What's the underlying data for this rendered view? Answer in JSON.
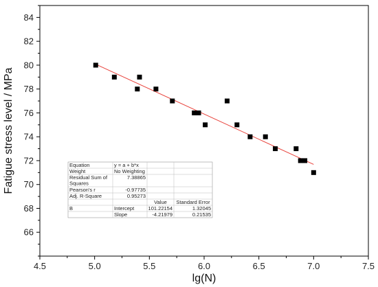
{
  "chart_data": {
    "type": "scatter",
    "xlabel": "lg(N)",
    "ylabel": "Fatigue stress level / MPa",
    "xlim": [
      4.5,
      7.5
    ],
    "ylim": [
      64,
      85
    ],
    "xticks": [
      "4.5",
      "5.0",
      "5.5",
      "6.0",
      "6.5",
      "7.0",
      "7.5"
    ],
    "yticks": [
      "66",
      "68",
      "70",
      "72",
      "74",
      "76",
      "78",
      "80",
      "82",
      "84"
    ],
    "points": [
      {
        "x": 5.01,
        "y": 80
      },
      {
        "x": 5.18,
        "y": 79
      },
      {
        "x": 5.39,
        "y": 78
      },
      {
        "x": 5.41,
        "y": 79
      },
      {
        "x": 5.56,
        "y": 78
      },
      {
        "x": 5.71,
        "y": 77
      },
      {
        "x": 5.91,
        "y": 76
      },
      {
        "x": 5.95,
        "y": 76
      },
      {
        "x": 6.01,
        "y": 75
      },
      {
        "x": 6.21,
        "y": 77
      },
      {
        "x": 6.3,
        "y": 75
      },
      {
        "x": 6.42,
        "y": 74
      },
      {
        "x": 6.56,
        "y": 74
      },
      {
        "x": 6.65,
        "y": 73
      },
      {
        "x": 6.84,
        "y": 73
      },
      {
        "x": 6.88,
        "y": 72
      },
      {
        "x": 6.92,
        "y": 72
      },
      {
        "x": 7.0,
        "y": 71
      }
    ],
    "fit": {
      "intercept": 101.22154,
      "slope": -4.21979,
      "x_range": [
        5.0,
        7.0
      ],
      "color": "#e8413a"
    },
    "marker_color": "#000000"
  },
  "fit_table": {
    "rows": [
      [
        "Equation",
        "y = a + b*x",
        "",
        ""
      ],
      [
        "Weight",
        "No Weighting",
        "",
        ""
      ],
      [
        "Residual Sum of\nSquares",
        "7.38865",
        "",
        ""
      ],
      [
        "Pearson's r",
        "-0.97735",
        "",
        ""
      ],
      [
        "Adj. R-Square",
        "0.95273",
        "",
        ""
      ],
      [
        "",
        "",
        "Value",
        "Standard Error"
      ],
      [
        "B",
        "Intercept",
        "101.22154",
        "1.32045"
      ],
      [
        "",
        "Slope",
        "-4.21979",
        "0.21535"
      ]
    ]
  }
}
